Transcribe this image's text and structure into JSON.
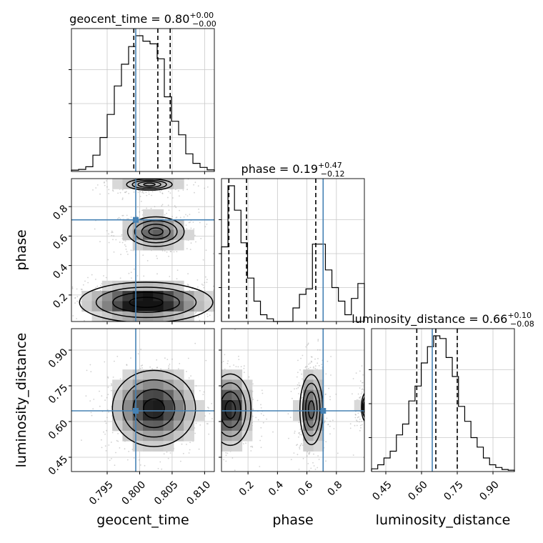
{
  "chart_data": {
    "type": "corner",
    "parameters": [
      "geocent_time",
      "phase",
      "luminosity_distance"
    ],
    "truths": {
      "geocent_time": 0.7994,
      "phase": 0.71,
      "luminosity_distance": 0.645
    },
    "marginals": [
      {
        "parameter": "geocent_time",
        "title_prefix": "geocent_time = 0.80",
        "title_plus": "+0.00",
        "title_minus": "−0.00",
        "range": [
          0.7895,
          0.8115
        ],
        "ticks": [
          0.795,
          0.8,
          0.805,
          0.81
        ],
        "tick_labels": [
          "0.795",
          "0.800",
          "0.805",
          "0.810"
        ],
        "quantiles": [
          0.7991,
          0.8028,
          0.8047
        ],
        "hist": [
          0.01,
          0.015,
          0.035,
          0.12,
          0.25,
          0.42,
          0.63,
          0.79,
          0.92,
          1.0,
          0.96,
          0.94,
          0.83,
          0.55,
          0.37,
          0.27,
          0.13,
          0.06,
          0.03,
          0.012
        ]
      },
      {
        "parameter": "phase",
        "title_prefix": "phase = 0.19",
        "title_plus": "+0.47",
        "title_minus": "−0.12",
        "range": [
          0.02,
          0.99
        ],
        "ticks": [
          0.2,
          0.4,
          0.6,
          0.8
        ],
        "tick_labels": [
          "0.2",
          "0.4",
          "0.6",
          "0.8"
        ],
        "quantiles": [
          0.07,
          0.19,
          0.66
        ],
        "hist": [
          0.55,
          1.0,
          0.82,
          0.58,
          0.32,
          0.15,
          0.05,
          0.02,
          0.0,
          0.0,
          0.0,
          0.1,
          0.2,
          0.24,
          0.57,
          0.57,
          0.38,
          0.25,
          0.15,
          0.05,
          0.17,
          0.28
        ]
      },
      {
        "parameter": "luminosity_distance",
        "title_prefix": "luminosity_distance = 0.66",
        "title_plus": "+0.10",
        "title_minus": "−0.08",
        "range": [
          0.39,
          0.99
        ],
        "ticks": [
          0.45,
          0.6,
          0.75,
          0.9
        ],
        "tick_labels": [
          "0.45",
          "0.60",
          "0.75",
          "0.90"
        ],
        "quantiles": [
          0.58,
          0.66,
          0.75
        ],
        "hist": [
          0.02,
          0.05,
          0.1,
          0.15,
          0.27,
          0.35,
          0.52,
          0.63,
          0.8,
          0.92,
          1.0,
          0.98,
          0.84,
          0.7,
          0.48,
          0.37,
          0.25,
          0.18,
          0.1,
          0.05,
          0.03,
          0.015,
          0.01
        ]
      }
    ],
    "pairs": [
      {
        "x": "geocent_time",
        "y": "phase",
        "y_ticks": [
          0.2,
          0.4,
          0.6,
          0.8
        ],
        "y_tick_labels": [
          "0.2",
          "0.4",
          "0.6",
          "0.8"
        ],
        "blobs": [
          {
            "cx": 0.8015,
            "cy": 0.95,
            "sx": 0.0032,
            "sy": 0.035,
            "w": 0.3
          },
          {
            "cx": 0.8025,
            "cy": 0.63,
            "sx": 0.0026,
            "sy": 0.06,
            "w": 0.7
          },
          {
            "cx": 0.801,
            "cy": 0.15,
            "sx": 0.0045,
            "sy": 0.06,
            "w": 1.3
          }
        ]
      },
      {
        "x": "geocent_time",
        "y": "luminosity_distance",
        "y_ticks": [
          0.45,
          0.6,
          0.75,
          0.9
        ],
        "y_tick_labels": [
          "0.45",
          "0.60",
          "0.75",
          "0.90"
        ],
        "blobs": [
          {
            "cx": 0.8022,
            "cy": 0.655,
            "sx": 0.0032,
            "sy": 0.08,
            "w": 1.0
          }
        ]
      },
      {
        "x": "phase",
        "y": "luminosity_distance",
        "blobs": [
          {
            "cx": 0.08,
            "cy": 0.65,
            "sx": 0.07,
            "sy": 0.075,
            "w": 1.0
          },
          {
            "cx": 0.63,
            "cy": 0.65,
            "sx": 0.045,
            "sy": 0.085,
            "w": 0.75
          },
          {
            "cx": 1.0,
            "cy": 0.66,
            "sx": 0.03,
            "sy": 0.06,
            "w": 0.25
          }
        ]
      }
    ],
    "accent_color": "#4682b4"
  }
}
